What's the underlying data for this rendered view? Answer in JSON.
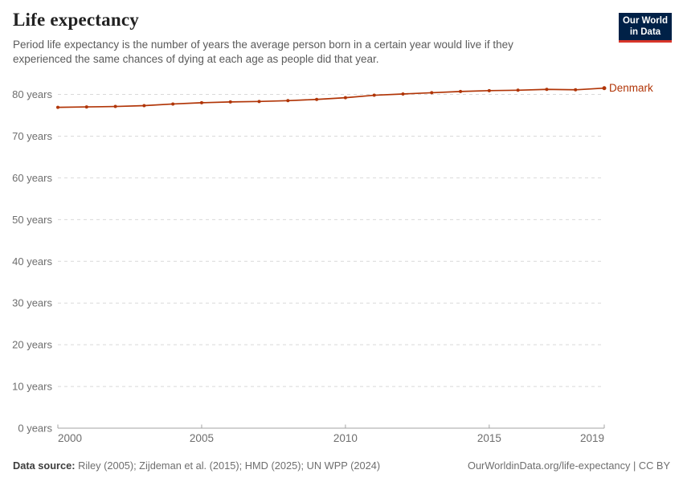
{
  "header": {
    "title": "Life expectancy",
    "subtitle": "Period life expectancy is the number of years the average person born in a certain year would live if they experienced the same chances of dying at each age as people did that year."
  },
  "logo": {
    "line1": "Our World",
    "line2": "in Data"
  },
  "chart_data": {
    "type": "line",
    "title": "Life expectancy",
    "xlabel": "",
    "ylabel": "",
    "x": [
      2000,
      2001,
      2002,
      2003,
      2004,
      2005,
      2006,
      2007,
      2008,
      2009,
      2010,
      2011,
      2012,
      2013,
      2014,
      2015,
      2016,
      2017,
      2018,
      2019
    ],
    "series": [
      {
        "name": "Denmark",
        "color": "#b13507",
        "values": [
          76.9,
          77.0,
          77.1,
          77.3,
          77.7,
          78.0,
          78.2,
          78.3,
          78.5,
          78.8,
          79.2,
          79.8,
          80.1,
          80.4,
          80.7,
          80.9,
          81.0,
          81.2,
          81.1,
          81.5
        ]
      }
    ],
    "xlim": [
      2000,
      2019
    ],
    "ylim": [
      0,
      80
    ],
    "x_ticks": [
      2000,
      2005,
      2010,
      2015,
      2019
    ],
    "y_ticks": [
      0,
      10,
      20,
      30,
      40,
      50,
      60,
      70,
      80
    ],
    "y_tick_suffix": " years",
    "grid": "horizontal-dashed",
    "legend": "line-end-label",
    "markers": true
  },
  "footer": {
    "sources_label": "Data source:",
    "sources": " Riley (2005); Zijdeman et al. (2015); HMD (2025); UN WPP (2024)",
    "link": "OurWorldinData.org/life-expectancy | CC BY"
  },
  "colors": {
    "line": "#b13507",
    "logo_bg": "#002147",
    "logo_accent": "#d8352a",
    "grid": "#d9d9d9",
    "axis": "#a3a3a3",
    "text_primary": "#222222",
    "text_secondary": "#5b5b5b",
    "tick_label": "#6e6e6e"
  }
}
